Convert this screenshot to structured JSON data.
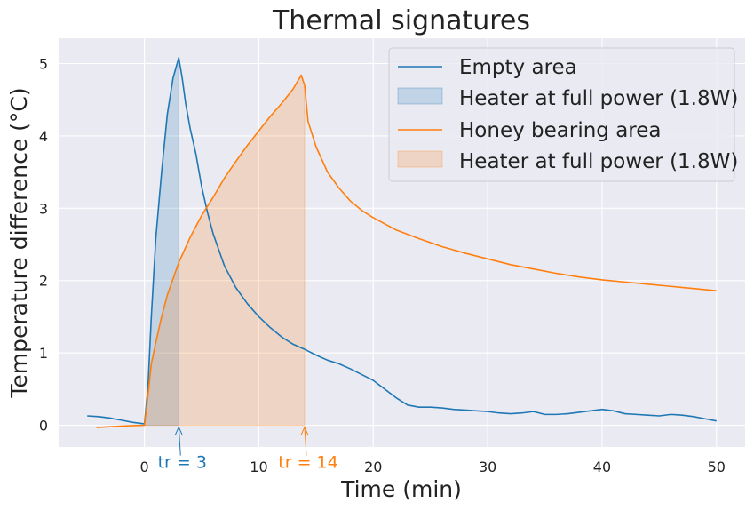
{
  "chart_data": {
    "type": "line",
    "title": "Thermal signatures",
    "xlabel": "Time (min)",
    "ylabel": "Temperature difference (°C)",
    "xlim": [
      -7.5,
      52.5
    ],
    "ylim": [
      -0.3,
      5.35
    ],
    "xticks": [
      "0",
      "10",
      "20",
      "30",
      "40",
      "50"
    ],
    "yticks": [
      "0",
      "1",
      "2",
      "3",
      "4",
      "5"
    ],
    "grid": true,
    "legend_position": "top-right",
    "series": [
      {
        "name": "Empty area",
        "color": "#1f77b4",
        "x": [
          -5,
          -4,
          -3,
          -2,
          -1,
          0,
          0.3,
          0.6,
          1,
          1.5,
          2,
          2.5,
          3,
          3.3,
          3.6,
          4,
          4.5,
          5,
          5.5,
          6,
          7,
          8,
          9,
          10,
          11,
          12,
          13,
          14,
          15,
          16,
          17,
          18,
          19,
          20,
          21,
          22,
          23,
          24,
          25,
          26,
          27,
          28,
          29,
          30,
          31,
          32,
          33,
          34,
          35,
          36,
          37,
          38,
          39,
          40,
          41,
          42,
          43,
          44,
          45,
          46,
          47,
          48,
          49,
          50
        ],
        "y": [
          0.13,
          0.12,
          0.1,
          0.07,
          0.04,
          0.02,
          0.5,
          1.5,
          2.6,
          3.5,
          4.3,
          4.8,
          5.08,
          4.8,
          4.45,
          4.1,
          3.75,
          3.3,
          2.95,
          2.65,
          2.2,
          1.9,
          1.68,
          1.5,
          1.35,
          1.22,
          1.12,
          1.05,
          0.97,
          0.9,
          0.85,
          0.78,
          0.7,
          0.62,
          0.5,
          0.38,
          0.28,
          0.25,
          0.25,
          0.24,
          0.22,
          0.21,
          0.2,
          0.19,
          0.17,
          0.16,
          0.17,
          0.19,
          0.15,
          0.15,
          0.16,
          0.18,
          0.2,
          0.22,
          0.2,
          0.16,
          0.15,
          0.14,
          0.13,
          0.15,
          0.14,
          0.12,
          0.09,
          0.06
        ]
      },
      {
        "name": "Honey bearing area",
        "color": "#ff7f0e",
        "x": [
          -4.2,
          -3,
          -2,
          -1,
          0,
          0.3,
          0.6,
          1,
          1.5,
          2,
          3,
          4,
          5,
          6,
          7,
          8,
          9,
          10,
          11,
          12,
          13,
          13.7,
          14,
          14.3,
          15,
          16,
          17,
          18,
          19,
          20,
          22,
          24,
          26,
          28,
          30,
          32,
          34,
          36,
          38,
          40,
          42,
          44,
          46,
          48,
          50
        ],
        "y": [
          -0.03,
          -0.02,
          -0.01,
          -0.005,
          0,
          0.4,
          0.85,
          1.15,
          1.5,
          1.8,
          2.25,
          2.6,
          2.9,
          3.15,
          3.42,
          3.65,
          3.87,
          4.07,
          4.27,
          4.45,
          4.65,
          4.84,
          4.7,
          4.2,
          3.85,
          3.5,
          3.28,
          3.1,
          2.97,
          2.87,
          2.7,
          2.58,
          2.47,
          2.38,
          2.3,
          2.22,
          2.16,
          2.1,
          2.05,
          2.01,
          1.98,
          1.95,
          1.92,
          1.89,
          1.86
        ]
      }
    ],
    "fills": [
      {
        "name": "Heater at full power (1.8W)",
        "series_index": 0,
        "x_from": 0,
        "x_to": 3,
        "color": "#1f77b4",
        "opacity": 0.2
      },
      {
        "name": "Heater at full power (1.8W)",
        "series_index": 1,
        "x_from": 0,
        "x_to": 14,
        "color": "#ff7f0e",
        "opacity": 0.2
      }
    ],
    "annotations": [
      {
        "text": "tr = 3",
        "x": 3,
        "y": 0,
        "color": "#1f77b4"
      },
      {
        "text": "tr = 14",
        "x": 14,
        "y": 0,
        "color": "#ff7f0e"
      }
    ]
  }
}
